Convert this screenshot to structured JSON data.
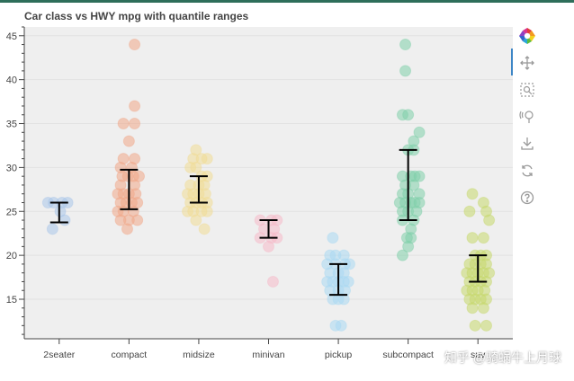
{
  "header": {
    "accent_color": "#2e6e5a"
  },
  "watermark": {
    "text": "知乎 @骑蜗牛上月球"
  },
  "toolbar": {
    "tools": [
      {
        "name": "bokeh-logo-icon",
        "interactable": false
      },
      {
        "name": "pan-tool-icon",
        "interactable": true,
        "active": true
      },
      {
        "name": "box-zoom-tool-icon",
        "interactable": true
      },
      {
        "name": "wheel-zoom-tool-icon",
        "interactable": true
      },
      {
        "name": "save-tool-icon",
        "interactable": true
      },
      {
        "name": "reset-tool-icon",
        "interactable": true
      },
      {
        "name": "help-tool-icon",
        "interactable": true
      }
    ]
  },
  "chart_data": {
    "type": "scatter",
    "title": "Car class vs HWY mpg with quantile ranges",
    "xlabel": "",
    "ylabel": "",
    "ylim": [
      10.5,
      46
    ],
    "yticks": [
      15,
      20,
      25,
      30,
      35,
      40,
      45
    ],
    "grid": true,
    "background": "#efefef",
    "categories": [
      "2seater",
      "compact",
      "midsize",
      "minivan",
      "pickup",
      "subcompact",
      "suv"
    ],
    "series": [
      {
        "name": "2seater",
        "color": "#aac6e9",
        "points": [
          [
            -0.2,
            26
          ],
          [
            -0.1,
            26
          ],
          [
            0.05,
            26
          ],
          [
            -0.12,
            23
          ],
          [
            0.1,
            24
          ],
          [
            0.02,
            25
          ],
          [
            0.15,
            26
          ]
        ],
        "q_low": 23.75,
        "q_high": 26
      },
      {
        "name": "compact",
        "color": "#f0a789",
        "points": [
          [
            0.1,
            44
          ],
          [
            -0.1,
            35
          ],
          [
            0.1,
            35
          ],
          [
            0.1,
            37
          ],
          [
            0,
            33
          ],
          [
            -0.1,
            31
          ],
          [
            0.1,
            31
          ],
          [
            -0.15,
            30
          ],
          [
            0.05,
            30
          ],
          [
            -0.12,
            29
          ],
          [
            -0.02,
            29
          ],
          [
            0.08,
            29
          ],
          [
            0.18,
            29
          ],
          [
            -0.15,
            28
          ],
          [
            0.1,
            28
          ],
          [
            -0.2,
            27
          ],
          [
            -0.1,
            27
          ],
          [
            0,
            27
          ],
          [
            0.12,
            27
          ],
          [
            -0.15,
            26
          ],
          [
            -0.05,
            26
          ],
          [
            0.05,
            26
          ],
          [
            0.15,
            26
          ],
          [
            -0.2,
            25
          ],
          [
            -0.1,
            25
          ],
          [
            0.08,
            25
          ],
          [
            -0.15,
            24
          ],
          [
            0,
            24
          ],
          [
            0.15,
            24
          ],
          [
            -0.03,
            23
          ]
        ],
        "q_low": 25.25,
        "q_high": 29.75
      },
      {
        "name": "midsize",
        "color": "#f0dc96",
        "points": [
          [
            -0.05,
            32
          ],
          [
            -0.1,
            31
          ],
          [
            0.05,
            31
          ],
          [
            0.15,
            31
          ],
          [
            -0.15,
            30
          ],
          [
            -0.05,
            30
          ],
          [
            0.05,
            29
          ],
          [
            0.15,
            29
          ],
          [
            -0.15,
            28
          ],
          [
            0,
            28
          ],
          [
            0.1,
            28
          ],
          [
            -0.2,
            27
          ],
          [
            -0.1,
            27
          ],
          [
            0,
            27
          ],
          [
            0.12,
            27
          ],
          [
            -0.15,
            26
          ],
          [
            -0.05,
            26
          ],
          [
            0.05,
            26
          ],
          [
            0.15,
            26
          ],
          [
            -0.2,
            25
          ],
          [
            -0.1,
            25
          ],
          [
            0.05,
            25
          ],
          [
            0.15,
            25
          ],
          [
            -0.05,
            24
          ],
          [
            0.1,
            23
          ]
        ],
        "q_low": 26,
        "q_high": 29
      },
      {
        "name": "minivan",
        "color": "#f6b9c8",
        "points": [
          [
            -0.15,
            24
          ],
          [
            0.05,
            24
          ],
          [
            0.15,
            24
          ],
          [
            -0.08,
            23
          ],
          [
            0.1,
            23
          ],
          [
            -0.15,
            22
          ],
          [
            0.05,
            22
          ],
          [
            0.15,
            22
          ],
          [
            0,
            21
          ],
          [
            0.08,
            17
          ]
        ],
        "q_low": 22,
        "q_high": 24
      },
      {
        "name": "pickup",
        "color": "#a9d9f2",
        "points": [
          [
            -0.1,
            22
          ],
          [
            -0.15,
            20
          ],
          [
            -0.05,
            20
          ],
          [
            0.1,
            20
          ],
          [
            -0.2,
            19
          ],
          [
            -0.05,
            19
          ],
          [
            0.12,
            19
          ],
          [
            0.2,
            19
          ],
          [
            -0.15,
            18
          ],
          [
            0,
            18
          ],
          [
            0.1,
            18
          ],
          [
            -0.2,
            17
          ],
          [
            -0.1,
            17
          ],
          [
            0,
            17
          ],
          [
            0.1,
            17
          ],
          [
            0.18,
            17
          ],
          [
            -0.15,
            16
          ],
          [
            0,
            16
          ],
          [
            0.12,
            16
          ],
          [
            -0.1,
            15
          ],
          [
            0,
            15
          ],
          [
            0.1,
            15
          ],
          [
            -0.05,
            12
          ],
          [
            0.05,
            12
          ]
        ],
        "q_low": 15.5,
        "q_high": 19
      },
      {
        "name": "subcompact",
        "color": "#7fcfaa",
        "points": [
          [
            -0.05,
            44
          ],
          [
            -0.05,
            41
          ],
          [
            -0.1,
            36
          ],
          [
            0,
            36
          ],
          [
            0.2,
            34
          ],
          [
            0.1,
            33
          ],
          [
            0,
            32
          ],
          [
            0.1,
            32
          ],
          [
            -0.1,
            29
          ],
          [
            0.05,
            29
          ],
          [
            0.12,
            29
          ],
          [
            0.2,
            29
          ],
          [
            -0.05,
            28
          ],
          [
            0.1,
            28
          ],
          [
            -0.1,
            27
          ],
          [
            0,
            27
          ],
          [
            0.2,
            27
          ],
          [
            -0.15,
            26
          ],
          [
            -0.05,
            26
          ],
          [
            0.05,
            26
          ],
          [
            0.12,
            26
          ],
          [
            0.2,
            26
          ],
          [
            -0.1,
            25
          ],
          [
            0,
            25
          ],
          [
            0.15,
            25
          ],
          [
            -0.1,
            24
          ],
          [
            0.1,
            24
          ],
          [
            0.05,
            23
          ],
          [
            -0.02,
            22
          ],
          [
            0.05,
            22
          ],
          [
            0,
            21
          ],
          [
            -0.1,
            20
          ]
        ],
        "q_low": 24,
        "q_high": 32
      },
      {
        "name": "suv",
        "color": "#c6d86b",
        "points": [
          [
            -0.1,
            27
          ],
          [
            0.1,
            26
          ],
          [
            -0.15,
            25
          ],
          [
            0.15,
            25
          ],
          [
            0.2,
            24
          ],
          [
            -0.1,
            22
          ],
          [
            0.1,
            22
          ],
          [
            -0.05,
            20
          ],
          [
            0.05,
            20
          ],
          [
            0.15,
            20
          ],
          [
            -0.15,
            19
          ],
          [
            -0.05,
            19
          ],
          [
            0.05,
            19
          ],
          [
            0.15,
            19
          ],
          [
            -0.2,
            18
          ],
          [
            -0.1,
            18
          ],
          [
            0,
            18
          ],
          [
            0.1,
            18
          ],
          [
            0.2,
            18
          ],
          [
            -0.15,
            17
          ],
          [
            -0.05,
            17
          ],
          [
            0.05,
            17
          ],
          [
            0.15,
            17
          ],
          [
            -0.2,
            16
          ],
          [
            -0.1,
            16
          ],
          [
            0,
            16
          ],
          [
            0.12,
            16
          ],
          [
            -0.15,
            15
          ],
          [
            -0.05,
            15
          ],
          [
            0.05,
            15
          ],
          [
            0.15,
            15
          ],
          [
            -0.1,
            14
          ],
          [
            0.1,
            14
          ],
          [
            -0.05,
            12
          ],
          [
            0.15,
            12
          ]
        ],
        "q_low": 17,
        "q_high": 20
      }
    ]
  }
}
